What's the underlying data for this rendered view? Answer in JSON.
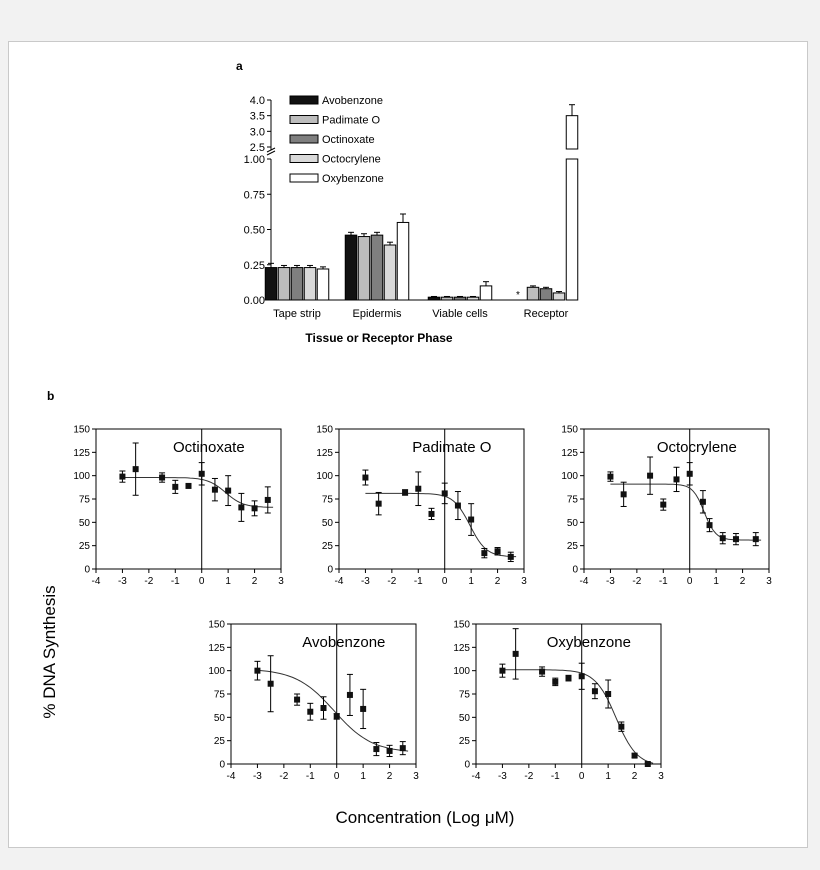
{
  "panel_a": {
    "letter": "a",
    "chart_data": {
      "type": "bar",
      "xlabel": "Tissue or Receptor Phase",
      "categories": [
        "Tape strip",
        "Epidermis",
        "Viable cells",
        "Receptor"
      ],
      "y_ticks_lower": [
        "0.00",
        "0.25",
        "0.50",
        "0.75",
        "1.00"
      ],
      "y_ticks_upper": [
        "2.5",
        "3.0",
        "3.5",
        "4.0"
      ],
      "ylim_lower": [
        0,
        1.0
      ],
      "ylim_upper": [
        2.5,
        4.0
      ],
      "axis_break": true,
      "legend_position": "top-left",
      "asterisk_note": "*",
      "series": [
        {
          "name": "Avobenzone",
          "color": "#111111",
          "values": [
            0.23,
            0.46,
            0.02,
            null
          ],
          "errors": [
            0.03,
            0.02,
            0.005,
            null
          ]
        },
        {
          "name": "Padimate O",
          "color": "#bdbdbd",
          "values": [
            0.23,
            0.45,
            0.02,
            0.09
          ],
          "errors": [
            0.015,
            0.02,
            0.005,
            0.01
          ]
        },
        {
          "name": "Octinoxate",
          "color": "#7f7f7f",
          "values": [
            0.23,
            0.46,
            0.02,
            0.08
          ],
          "errors": [
            0.015,
            0.02,
            0.005,
            0.01
          ]
        },
        {
          "name": "Octocrylene",
          "color": "#d9d9d9",
          "values": [
            0.23,
            0.39,
            0.02,
            0.05
          ],
          "errors": [
            0.015,
            0.02,
            0.005,
            0.01
          ]
        },
        {
          "name": "Oxybenzone",
          "color": "#ffffff",
          "values": [
            0.22,
            0.55,
            0.1,
            3.5
          ],
          "errors": [
            0.015,
            0.06,
            0.03,
            0.35
          ]
        }
      ]
    }
  },
  "panel_b": {
    "letter": "b",
    "ylabel": "% DNA Synthesis",
    "xlabel": "Concentration (Log μM)",
    "chart_data": [
      {
        "type": "scatter",
        "title": "Octinoxate",
        "xlim": [
          -4,
          3
        ],
        "ylim": [
          0,
          150
        ],
        "x_ticks": [
          "-4",
          "-3",
          "-2",
          "-1",
          "0",
          "1",
          "2",
          "3"
        ],
        "y_ticks": [
          "0",
          "25",
          "50",
          "75",
          "100",
          "125",
          "150"
        ],
        "points": [
          {
            "x": -3.0,
            "y": 99,
            "err": 6
          },
          {
            "x": -2.5,
            "y": 107,
            "err": 28
          },
          {
            "x": -1.5,
            "y": 98,
            "err": 5
          },
          {
            "x": -1.0,
            "y": 88,
            "err": 7
          },
          {
            "x": -0.5,
            "y": 89,
            "err": 2
          },
          {
            "x": 0.0,
            "y": 102,
            "err": 12
          },
          {
            "x": 0.5,
            "y": 85,
            "err": 12
          },
          {
            "x": 1.0,
            "y": 84,
            "err": 16
          },
          {
            "x": 1.5,
            "y": 66,
            "err": 15
          },
          {
            "x": 2.0,
            "y": 65,
            "err": 8
          },
          {
            "x": 2.5,
            "y": 74,
            "err": 14
          }
        ],
        "fit": {
          "top": 98,
          "bottom": 66,
          "ec50": 0.9,
          "hill": 1.3
        }
      },
      {
        "type": "scatter",
        "title": "Padimate O",
        "xlim": [
          -4,
          3
        ],
        "ylim": [
          0,
          150
        ],
        "x_ticks": [
          "-4",
          "-3",
          "-2",
          "-1",
          "0",
          "1",
          "2",
          "3"
        ],
        "y_ticks": [
          "0",
          "25",
          "50",
          "75",
          "100",
          "125",
          "150"
        ],
        "points": [
          {
            "x": -3.0,
            "y": 98,
            "err": 8
          },
          {
            "x": -2.5,
            "y": 70,
            "err": 12
          },
          {
            "x": -1.5,
            "y": 82,
            "err": 3
          },
          {
            "x": -1.0,
            "y": 86,
            "err": 18
          },
          {
            "x": -0.5,
            "y": 59,
            "err": 6
          },
          {
            "x": 0.0,
            "y": 81,
            "err": 11
          },
          {
            "x": 0.5,
            "y": 68,
            "err": 15
          },
          {
            "x": 1.0,
            "y": 53,
            "err": 17
          },
          {
            "x": 1.5,
            "y": 17,
            "err": 5
          },
          {
            "x": 2.0,
            "y": 19,
            "err": 4
          },
          {
            "x": 2.5,
            "y": 13,
            "err": 5
          }
        ],
        "fit": {
          "top": 81,
          "bottom": 13,
          "ec50": 0.95,
          "hill": 1.4
        }
      },
      {
        "type": "scatter",
        "title": "Octocrylene",
        "xlim": [
          -4,
          3
        ],
        "ylim": [
          0,
          150
        ],
        "x_ticks": [
          "-4",
          "-3",
          "-2",
          "-1",
          "0",
          "1",
          "2",
          "3"
        ],
        "y_ticks": [
          "0",
          "25",
          "50",
          "75",
          "100",
          "125",
          "150"
        ],
        "points": [
          {
            "x": -3.0,
            "y": 99,
            "err": 5
          },
          {
            "x": -2.5,
            "y": 80,
            "err": 13
          },
          {
            "x": -1.5,
            "y": 100,
            "err": 20
          },
          {
            "x": -1.0,
            "y": 69,
            "err": 6
          },
          {
            "x": -0.5,
            "y": 96,
            "err": 13
          },
          {
            "x": 0.0,
            "y": 102,
            "err": 12
          },
          {
            "x": 0.5,
            "y": 72,
            "err": 12
          },
          {
            "x": 0.75,
            "y": 47,
            "err": 7
          },
          {
            "x": 1.25,
            "y": 33,
            "err": 6
          },
          {
            "x": 1.75,
            "y": 32,
            "err": 6
          },
          {
            "x": 2.5,
            "y": 32,
            "err": 7
          }
        ],
        "fit": {
          "top": 91,
          "bottom": 31,
          "ec50": 0.55,
          "hill": 2.0
        }
      },
      {
        "type": "scatter",
        "title": "Avobenzone",
        "xlim": [
          -4,
          3
        ],
        "ylim": [
          0,
          150
        ],
        "x_ticks": [
          "-4",
          "-3",
          "-2",
          "-1",
          "0",
          "1",
          "2",
          "3"
        ],
        "y_ticks": [
          "0",
          "25",
          "50",
          "75",
          "100",
          "125",
          "150"
        ],
        "points": [
          {
            "x": -3.0,
            "y": 100,
            "err": 10
          },
          {
            "x": -2.5,
            "y": 86,
            "err": 30
          },
          {
            "x": -1.5,
            "y": 69,
            "err": 6
          },
          {
            "x": -1.0,
            "y": 56,
            "err": 9
          },
          {
            "x": -0.5,
            "y": 60,
            "err": 12
          },
          {
            "x": 0.0,
            "y": 51,
            "err": 3
          },
          {
            "x": 0.5,
            "y": 74,
            "err": 22
          },
          {
            "x": 1.0,
            "y": 59,
            "err": 21
          },
          {
            "x": 1.5,
            "y": 16,
            "err": 7
          },
          {
            "x": 2.0,
            "y": 14,
            "err": 6
          },
          {
            "x": 2.5,
            "y": 17,
            "err": 7
          }
        ],
        "fit": {
          "top": 102,
          "bottom": 12,
          "ec50": -0.1,
          "hill": 0.6
        }
      },
      {
        "type": "scatter",
        "title": "Oxybenzone",
        "xlim": [
          -4,
          3
        ],
        "ylim": [
          0,
          150
        ],
        "x_ticks": [
          "-4",
          "-3",
          "-2",
          "-1",
          "0",
          "1",
          "2",
          "3"
        ],
        "y_ticks": [
          "0",
          "25",
          "50",
          "75",
          "100",
          "125",
          "150"
        ],
        "points": [
          {
            "x": -3.0,
            "y": 100,
            "err": 7
          },
          {
            "x": -2.5,
            "y": 118,
            "err": 27
          },
          {
            "x": -1.5,
            "y": 99,
            "err": 5
          },
          {
            "x": -1.0,
            "y": 88,
            "err": 4
          },
          {
            "x": -0.5,
            "y": 92,
            "err": 3
          },
          {
            "x": 0.0,
            "y": 94,
            "err": 14
          },
          {
            "x": 0.5,
            "y": 78,
            "err": 8
          },
          {
            "x": 1.0,
            "y": 75,
            "err": 15
          },
          {
            "x": 1.5,
            "y": 40,
            "err": 5
          },
          {
            "x": 2.0,
            "y": 9,
            "err": 2
          },
          {
            "x": 2.5,
            "y": 0,
            "err": 1
          }
        ],
        "fit": {
          "top": 101,
          "bottom": -2,
          "ec50": 1.3,
          "hill": 1.1
        }
      }
    ]
  }
}
